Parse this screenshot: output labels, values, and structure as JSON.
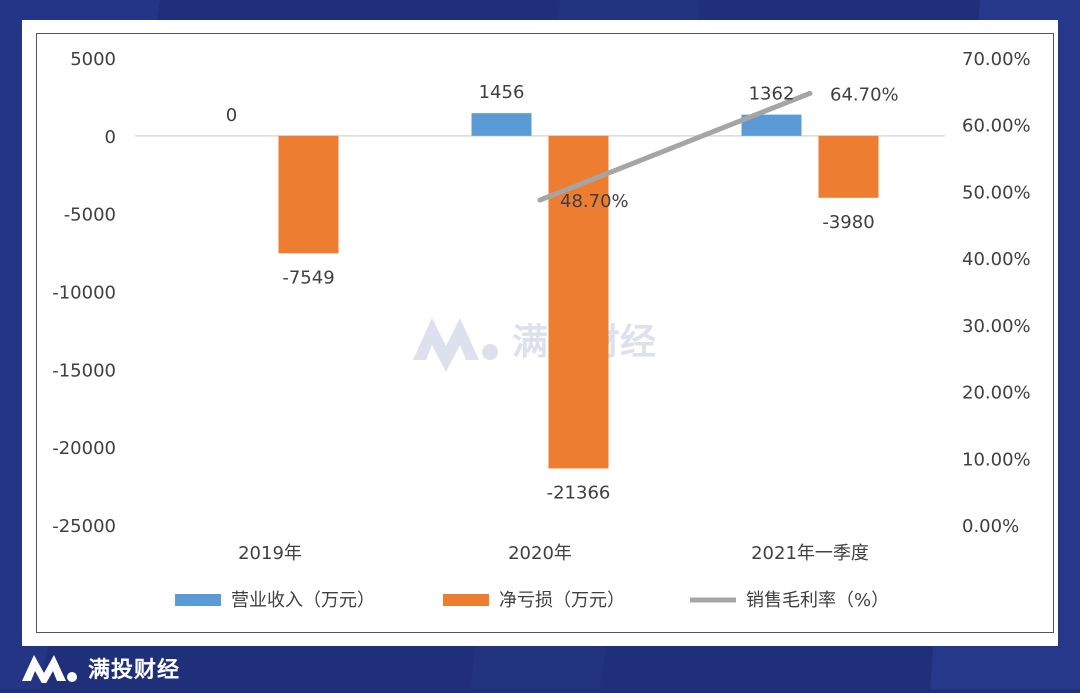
{
  "colors": {
    "background": "#1f2f7a",
    "revenue": "#5b9bd5",
    "net_loss": "#ed7d31",
    "margin": "#a5a5a5"
  },
  "watermark": {
    "text": "满投财经"
  },
  "footer": {
    "brand_text": "满投财经"
  },
  "chart_data": {
    "type": "bar",
    "categories": [
      "2019年",
      "2020年",
      "2021年一季度"
    ],
    "series": [
      {
        "name": "营业收入（万元）",
        "type": "bar",
        "axis": "left",
        "values": [
          0,
          1456,
          1362
        ],
        "labels": [
          "0",
          "1456",
          "1362"
        ]
      },
      {
        "name": "净亏损（万元）",
        "type": "bar",
        "axis": "left",
        "values": [
          -7549,
          -21366,
          -3980
        ],
        "labels": [
          "-7549",
          "-21366",
          "-3980"
        ]
      },
      {
        "name": "销售毛利率（%）",
        "type": "line",
        "axis": "right",
        "values": [
          null,
          48.7,
          64.7
        ],
        "labels": [
          "",
          "48.70%",
          "64.70%"
        ]
      }
    ],
    "y_left": {
      "min": -25000,
      "max": 5000,
      "ticks": [
        "5000",
        "0",
        "-5000",
        "-10000",
        "-15000",
        "-20000",
        "-25000"
      ]
    },
    "y_right": {
      "min": 0,
      "max": 70,
      "ticks": [
        "70.00%",
        "60.00%",
        "50.00%",
        "40.00%",
        "30.00%",
        "20.00%",
        "10.00%",
        "0.00%"
      ]
    },
    "legend_position": "bottom",
    "grid": false
  }
}
